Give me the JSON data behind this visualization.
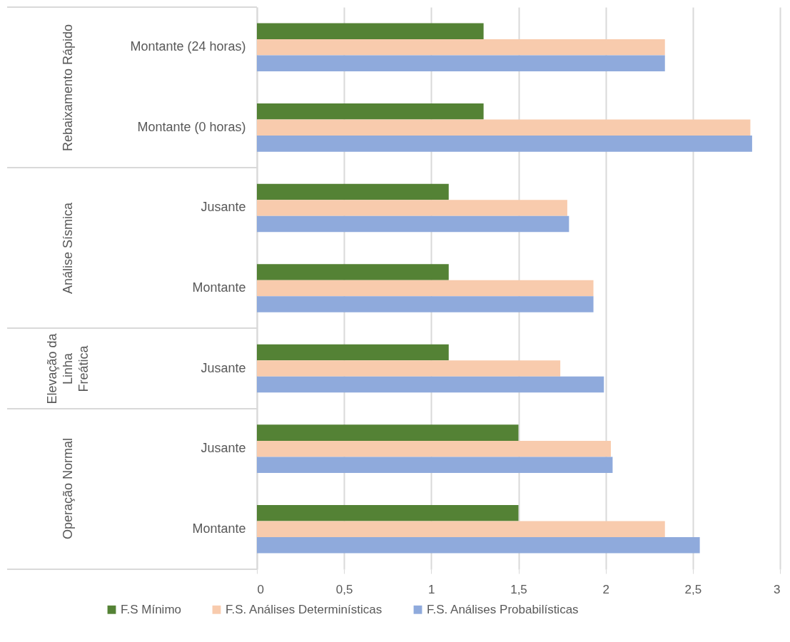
{
  "chart_data": {
    "type": "bar",
    "orientation": "horizontal",
    "categories": [
      "Montante (24 horas)",
      "Montante (0 horas)",
      "Jusante",
      "Montante",
      "Jusante",
      "Jusante",
      "Montante"
    ],
    "series": [
      {
        "name": "F.S Mínimo",
        "color": "#548235",
        "values": [
          1.3,
          1.3,
          1.1,
          1.1,
          1.1,
          1.5,
          1.5
        ]
      },
      {
        "name": "F.S. Análises Determinísticas",
        "color": "#f8cbad",
        "values": [
          2.34,
          2.83,
          1.78,
          1.93,
          1.74,
          2.03,
          2.34
        ]
      },
      {
        "name": "F.S. Análises Probabilísticas",
        "color": "#8faadc",
        "values": [
          2.34,
          2.84,
          1.79,
          1.93,
          1.99,
          2.04,
          2.54
        ]
      }
    ],
    "xlim": [
      0,
      3
    ],
    "xticks": [
      0,
      {
        "value": 0.5,
        "label": "0,5"
      },
      1,
      {
        "value": 1.5,
        "label": "1,5"
      },
      2,
      {
        "value": 2.5,
        "label": "2,5"
      },
      3
    ],
    "grid": "x",
    "legend": "bottom",
    "annotations": [
      "Rebaixamento Rápido",
      "Análise Sísmica",
      "Elevação da Linha Freática",
      "Operação Normal"
    ]
  }
}
